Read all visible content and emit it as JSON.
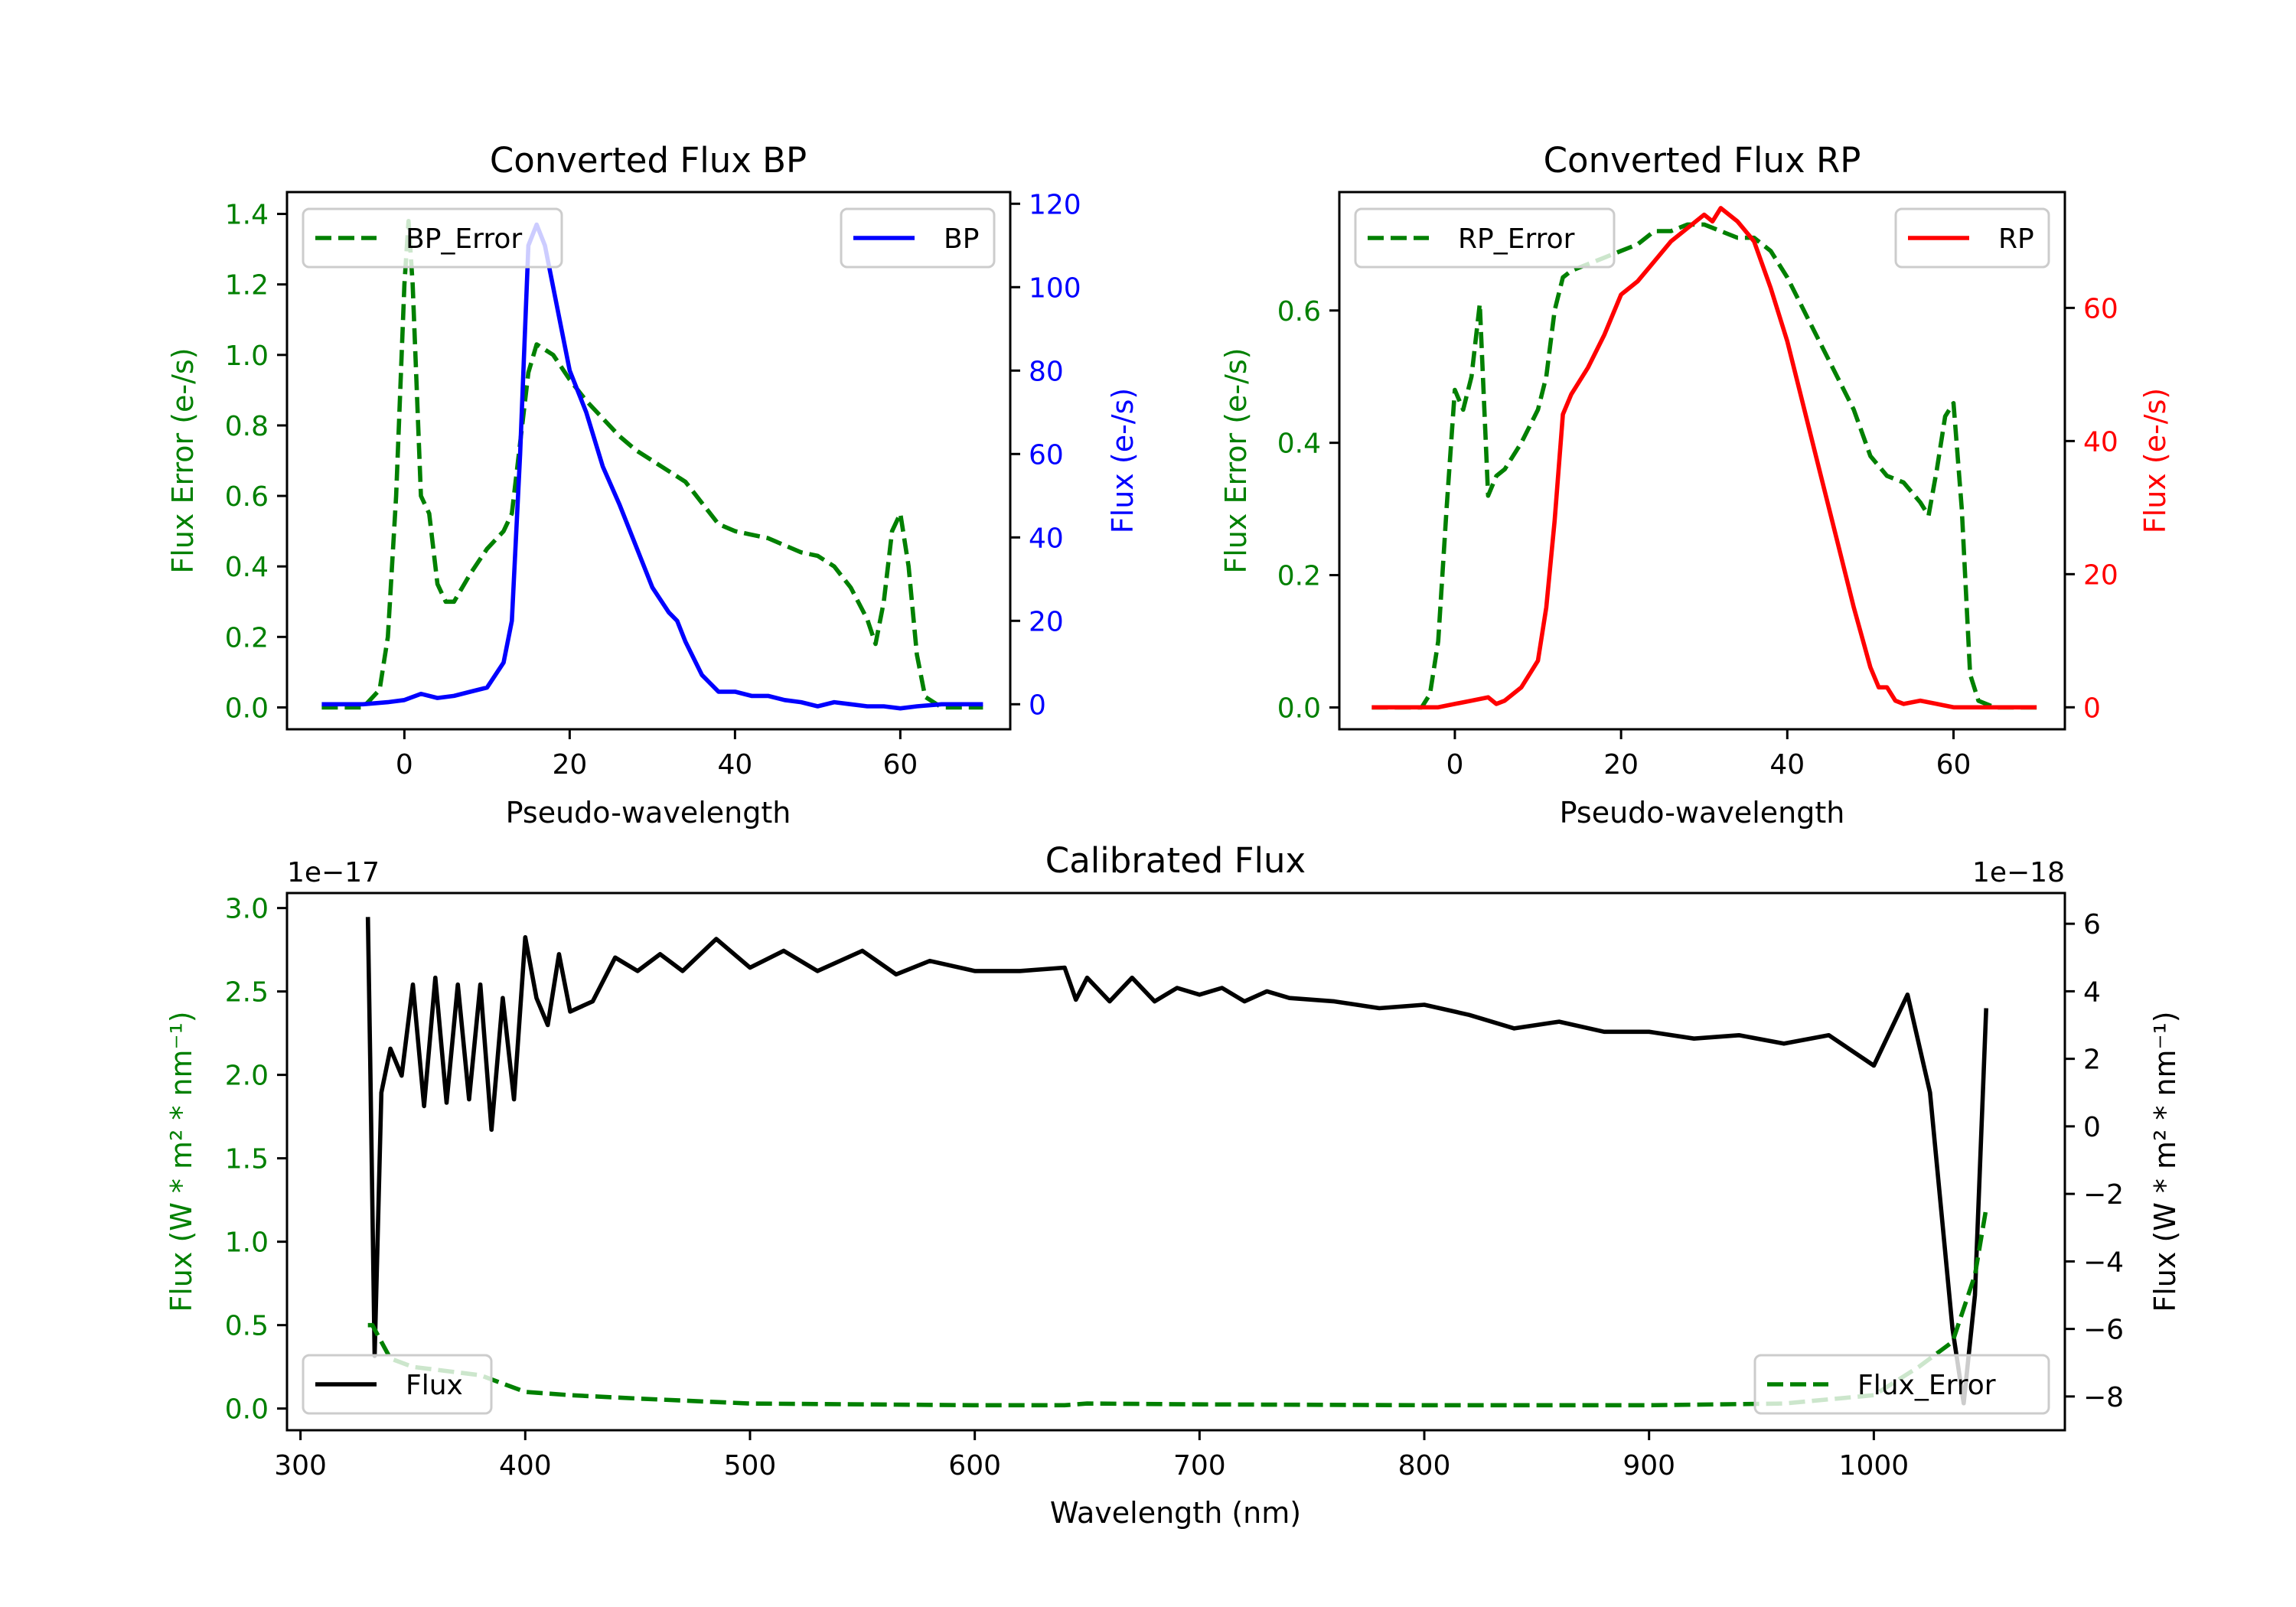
{
  "colors": {
    "green": "#008000",
    "blue": "#0000ff",
    "red": "#ff0000",
    "black": "#000000"
  },
  "chart_data": [
    {
      "id": "bp",
      "type": "line",
      "title": "Converted Flux BP",
      "xlabel": "Pseudo-wavelength",
      "ylabel_left": "Flux Error (e-/s)",
      "ylabel_right": "Flux (e-/s)",
      "xlim": [
        -14.2,
        73.3
      ],
      "ylim_left": [
        -0.062,
        1.462
      ],
      "ylim_right": [
        -6,
        122.8
      ],
      "xticks": [
        0,
        20,
        40,
        60
      ],
      "xtick_labels": [
        "0",
        "20",
        "40",
        "60"
      ],
      "yticks_left": [
        0,
        0.2,
        0.4,
        0.6,
        0.8,
        1.0,
        1.2,
        1.4
      ],
      "ytick_labels_left": [
        "0.0",
        "0.2",
        "0.4",
        "0.6",
        "0.8",
        "1.0",
        "1.2",
        "1.4"
      ],
      "yticks_right": [
        0,
        20,
        40,
        60,
        80,
        100,
        120
      ],
      "ytick_labels_right": [
        "0",
        "20",
        "40",
        "60",
        "80",
        "100",
        "120"
      ],
      "left_color": "#008000",
      "right_color": "#0000ff",
      "series": [
        {
          "name": "BP_Error",
          "axis": "left",
          "style": "dashed",
          "color": "#008000",
          "legend": "upper left",
          "x": [
            -10,
            -5,
            -3,
            -2,
            -1,
            0,
            0.5,
            1,
            2,
            3,
            4,
            5,
            6,
            8,
            10,
            12,
            13,
            14,
            15,
            16,
            18,
            20,
            22,
            24,
            26,
            28,
            30,
            32,
            34,
            36,
            38,
            40,
            42,
            44,
            46,
            48,
            50,
            52,
            54,
            56,
            57,
            58,
            59,
            60,
            61,
            62,
            63,
            65,
            70
          ],
          "y": [
            0,
            0,
            0.05,
            0.2,
            0.6,
            1.2,
            1.38,
            1.2,
            0.6,
            0.55,
            0.35,
            0.3,
            0.3,
            0.38,
            0.45,
            0.5,
            0.55,
            0.75,
            0.95,
            1.03,
            1.0,
            0.93,
            0.87,
            0.82,
            0.77,
            0.73,
            0.7,
            0.67,
            0.64,
            0.58,
            0.52,
            0.5,
            0.49,
            0.48,
            0.46,
            0.44,
            0.43,
            0.4,
            0.34,
            0.25,
            0.18,
            0.3,
            0.5,
            0.55,
            0.4,
            0.15,
            0.03,
            0,
            0
          ]
        },
        {
          "name": "BP",
          "axis": "right",
          "style": "solid",
          "color": "#0000ff",
          "legend": "upper right",
          "x": [
            -10,
            -5,
            -2,
            0,
            2,
            4,
            6,
            8,
            10,
            12,
            13,
            14,
            15,
            16,
            17,
            18,
            19,
            20,
            22,
            24,
            26,
            28,
            30,
            32,
            33,
            34,
            36,
            38,
            40,
            42,
            44,
            46,
            48,
            50,
            52,
            54,
            56,
            58,
            60,
            62,
            65,
            70
          ],
          "y": [
            0,
            0,
            0.5,
            1,
            2.5,
            1.5,
            2,
            3,
            4,
            10,
            20,
            60,
            110,
            115,
            110,
            100,
            90,
            80,
            70,
            57,
            48,
            38,
            28,
            22,
            20,
            15,
            7,
            3,
            3,
            2,
            2,
            1,
            0.5,
            -0.5,
            0.5,
            0,
            -0.5,
            -0.5,
            -1,
            -0.5,
            0,
            0
          ]
        }
      ]
    },
    {
      "id": "rp",
      "type": "line",
      "title": "Converted Flux RP",
      "xlabel": "Pseudo-wavelength",
      "ylabel_left": "Flux Error (e-/s)",
      "ylabel_right": "Flux (e-/s)",
      "xlim": [
        -13.9,
        73.4
      ],
      "ylim_left": [
        -0.033,
        0.779
      ],
      "ylim_right": [
        -3.3,
        77.4
      ],
      "xticks": [
        0,
        20,
        40,
        60
      ],
      "xtick_labels": [
        "0",
        "20",
        "40",
        "60"
      ],
      "yticks_left": [
        0,
        0.2,
        0.4,
        0.6
      ],
      "ytick_labels_left": [
        "0.0",
        "0.2",
        "0.4",
        "0.6"
      ],
      "yticks_right": [
        0,
        20,
        40,
        60
      ],
      "ytick_labels_right": [
        "0",
        "20",
        "40",
        "60"
      ],
      "left_color": "#008000",
      "right_color": "#ff0000",
      "series": [
        {
          "name": "RP_Error",
          "axis": "left",
          "style": "dashed",
          "color": "#008000",
          "legend": "upper left",
          "x": [
            -10,
            -4,
            -3,
            -2,
            -1,
            0,
            1,
            2,
            3,
            4,
            5,
            6,
            8,
            10,
            11,
            12,
            13,
            14,
            16,
            18,
            20,
            22,
            24,
            26,
            28,
            30,
            32,
            34,
            36,
            38,
            40,
            42,
            44,
            46,
            48,
            50,
            52,
            54,
            56,
            57,
            58,
            59,
            60,
            61,
            62,
            63,
            65,
            70
          ],
          "y": [
            0,
            0,
            0.02,
            0.1,
            0.3,
            0.48,
            0.45,
            0.5,
            0.61,
            0.32,
            0.35,
            0.36,
            0.4,
            0.45,
            0.5,
            0.6,
            0.65,
            0.66,
            0.67,
            0.68,
            0.69,
            0.7,
            0.72,
            0.72,
            0.73,
            0.73,
            0.72,
            0.71,
            0.71,
            0.69,
            0.65,
            0.6,
            0.55,
            0.5,
            0.45,
            0.38,
            0.35,
            0.34,
            0.31,
            0.29,
            0.36,
            0.44,
            0.46,
            0.3,
            0.05,
            0.01,
            0,
            0
          ]
        },
        {
          "name": "RP",
          "axis": "right",
          "style": "solid",
          "color": "#ff0000",
          "legend": "upper right",
          "x": [
            -10,
            -2,
            0,
            2,
            4,
            5,
            6,
            8,
            10,
            11,
            12,
            13,
            14,
            16,
            18,
            20,
            22,
            24,
            26,
            28,
            30,
            31,
            32,
            34,
            36,
            38,
            40,
            42,
            44,
            46,
            48,
            50,
            51,
            52,
            53,
            54,
            56,
            58,
            60,
            70
          ],
          "y": [
            0,
            0,
            0.5,
            1,
            1.5,
            0.5,
            1,
            3,
            7,
            15,
            28,
            44,
            47,
            51,
            56,
            62,
            64,
            67,
            70,
            72,
            74,
            73,
            75,
            73,
            70,
            63,
            55,
            45,
            35,
            25,
            15,
            6,
            3,
            3,
            1,
            0.5,
            1,
            0.5,
            0,
            0
          ]
        }
      ]
    },
    {
      "id": "cal",
      "type": "line",
      "title": "Calibrated Flux",
      "xlabel": "Wavelength (nm)",
      "ylabel_left": "Flux (W * m² * nm⁻¹)",
      "ylabel_right": "Flux (W * m² * nm⁻¹)",
      "offset_left": "1e−17",
      "offset_right": "1e−18",
      "xlim": [
        294,
        1085
      ],
      "ylim_left": [
        -0.13,
        3.09
      ],
      "ylim_right": [
        -9.0,
        6.91
      ],
      "xticks": [
        300,
        400,
        500,
        600,
        700,
        800,
        900,
        1000
      ],
      "xtick_labels": [
        "300",
        "400",
        "500",
        "600",
        "700",
        "800",
        "900",
        "1000"
      ],
      "yticks_left": [
        0,
        0.5,
        1.0,
        1.5,
        2.0,
        2.5,
        3.0
      ],
      "ytick_labels_left": [
        "0.0",
        "0.5",
        "1.0",
        "1.5",
        "2.0",
        "2.5",
        "3.0"
      ],
      "yticks_right": [
        -8,
        -6,
        -4,
        -2,
        0,
        2,
        4,
        6
      ],
      "ytick_labels_right": [
        "−8",
        "−6",
        "−4",
        "−2",
        "0",
        "2",
        "4",
        "6"
      ],
      "left_color": "#008000",
      "right_color": "#000000",
      "series": [
        {
          "name": "Flux",
          "axis": "right",
          "style": "solid",
          "color": "#000000",
          "legend": "lower left",
          "x": [
            330,
            331,
            333,
            336,
            340,
            345,
            350,
            355,
            360,
            365,
            370,
            375,
            380,
            385,
            390,
            395,
            400,
            405,
            410,
            415,
            420,
            430,
            440,
            450,
            460,
            470,
            485,
            500,
            515,
            530,
            550,
            565,
            580,
            600,
            620,
            640,
            645,
            650,
            660,
            670,
            680,
            690,
            700,
            710,
            720,
            730,
            740,
            760,
            780,
            800,
            820,
            840,
            860,
            880,
            900,
            920,
            940,
            960,
            980,
            1000,
            1015,
            1025,
            1035,
            1040,
            1045,
            1050
          ],
          "y": [
            6.2,
            2.0,
            -6.8,
            1.0,
            2.3,
            1.5,
            4.2,
            0.6,
            4.4,
            0.7,
            4.2,
            0.8,
            4.2,
            -0.1,
            3.8,
            0.8,
            5.6,
            3.8,
            3.0,
            5.1,
            3.4,
            3.7,
            5.0,
            4.6,
            5.1,
            4.6,
            5.55,
            4.7,
            5.2,
            4.6,
            5.2,
            4.5,
            4.9,
            4.6,
            4.6,
            4.7,
            3.75,
            4.4,
            3.7,
            4.4,
            3.7,
            4.1,
            3.9,
            4.1,
            3.7,
            4.0,
            3.8,
            3.7,
            3.5,
            3.6,
            3.3,
            2.9,
            3.1,
            2.8,
            2.8,
            2.6,
            2.7,
            2.45,
            2.7,
            1.8,
            3.9,
            1.0,
            -6.0,
            -8.2,
            -5.0,
            3.5
          ]
        },
        {
          "name": "Flux_Error",
          "axis": "left",
          "style": "dashed",
          "color": "#008000",
          "legend": "lower right",
          "x": [
            330,
            332,
            340,
            350,
            380,
            400,
            420,
            450,
            500,
            600,
            640,
            650,
            700,
            800,
            900,
            960,
            1000,
            1020,
            1035,
            1045,
            1050
          ],
          "y": [
            0.5,
            0.5,
            0.3,
            0.25,
            0.2,
            0.1,
            0.08,
            0.06,
            0.03,
            0.02,
            0.02,
            0.03,
            0.025,
            0.02,
            0.02,
            0.03,
            0.08,
            0.25,
            0.4,
            0.8,
            1.2
          ]
        }
      ]
    }
  ]
}
